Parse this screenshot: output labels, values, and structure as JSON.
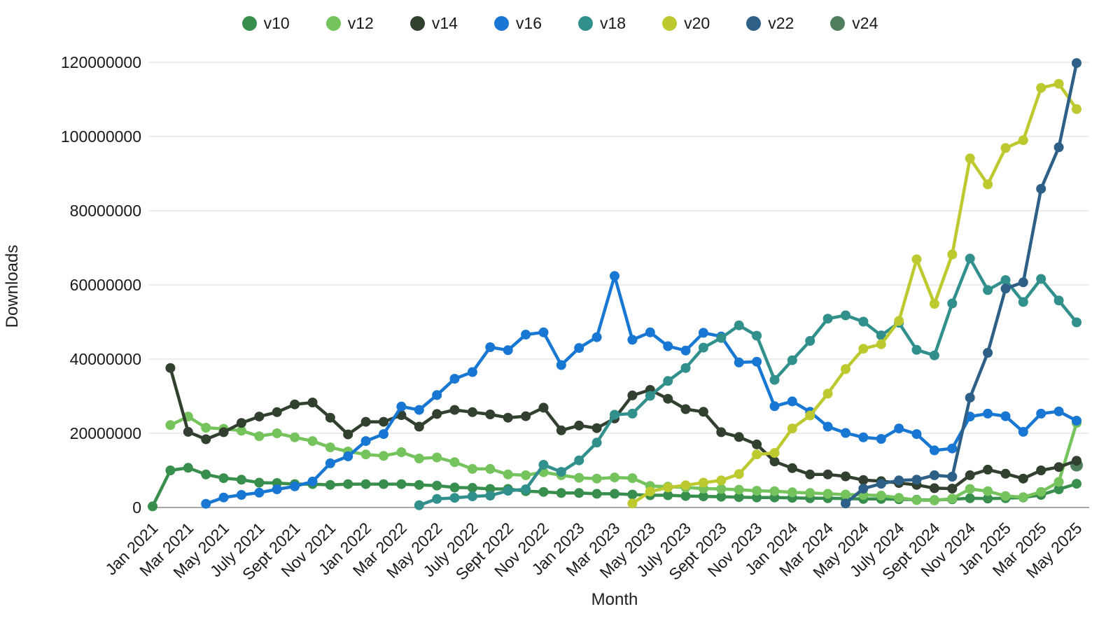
{
  "chart_data": {
    "type": "line",
    "title": "",
    "xlabel": "Month",
    "ylabel": "Downloads",
    "ylim": [
      0,
      120000000
    ],
    "yticks": [
      0,
      20000000,
      40000000,
      60000000,
      80000000,
      100000000,
      120000000
    ],
    "grid": "horizontal",
    "legend_position": "top",
    "x_tick_every": 2,
    "months": [
      "Jan 2021",
      "Feb 2021",
      "Mar 2021",
      "Apr 2021",
      "May 2021",
      "June 2021",
      "July 2021",
      "Aug 2021",
      "Sept 2021",
      "Oct 2021",
      "Nov 2021",
      "Dec 2021",
      "Jan 2022",
      "Feb 2022",
      "Mar 2022",
      "Apr 2022",
      "May 2022",
      "June 2022",
      "July 2022",
      "Aug 2022",
      "Sept 2022",
      "Oct 2022",
      "Nov 2022",
      "Dec 2022",
      "Jan 2023",
      "Feb 2023",
      "Mar 2023",
      "Apr 2023",
      "May 2023",
      "June 2023",
      "July 2023",
      "Aug 2023",
      "Sept 2023",
      "Oct 2023",
      "Nov 2023",
      "Dec 2023",
      "Jan 2024",
      "Feb 2024",
      "Mar 2024",
      "Apr 2024",
      "May 2024",
      "June 2024",
      "July 2024",
      "Aug 2024",
      "Sept 2024",
      "Oct 2024",
      "Nov 2024",
      "Dec 2024",
      "Jan 2025",
      "Feb 2025",
      "Mar 2025",
      "Apr 2025",
      "May 2025"
    ],
    "series": [
      {
        "name": "v10",
        "color": "#388e4c",
        "values": [
          300000,
          10000000,
          10700000,
          8900000,
          7900000,
          7500000,
          6700000,
          6600000,
          6300000,
          6300000,
          6100000,
          6300000,
          6300000,
          6300000,
          6300000,
          6100000,
          5900000,
          5400000,
          5300000,
          5000000,
          5000000,
          4400000,
          4200000,
          3900000,
          3900000,
          3700000,
          3700000,
          3500000,
          3300000,
          3300000,
          3100000,
          3000000,
          2900000,
          2800000,
          2700000,
          2700000,
          2600000,
          2500000,
          2500000,
          2400000,
          2300000,
          2300000,
          2200000,
          2100000,
          2000000,
          2200000,
          2500000,
          2400000,
          2500000,
          2700000,
          3400000,
          4900000,
          6400000
        ]
      },
      {
        "name": "v12",
        "color": "#74c35c",
        "values": [
          null,
          22200000,
          24500000,
          21500000,
          21200000,
          20700000,
          19200000,
          20000000,
          18900000,
          17900000,
          16200000,
          15100000,
          14300000,
          13900000,
          14900000,
          13200000,
          13500000,
          12200000,
          10400000,
          10400000,
          8900000,
          8700000,
          9500000,
          8700000,
          8000000,
          7800000,
          8100000,
          7900000,
          5800000,
          5600000,
          5400000,
          5100000,
          5000000,
          4800000,
          4500000,
          4400000,
          4100000,
          3900000,
          3700000,
          3500000,
          3400000,
          3200000,
          2600000,
          2000000,
          1900000,
          2400000,
          5000000,
          4400000,
          3100000,
          2800000,
          4200000,
          6900000,
          22800000
        ]
      },
      {
        "name": "v24",
        "color": "#4f7f5c",
        "values": [
          null,
          null,
          null,
          null,
          null,
          null,
          null,
          null,
          null,
          null,
          null,
          null,
          null,
          null,
          null,
          null,
          null,
          null,
          null,
          null,
          null,
          null,
          null,
          null,
          null,
          null,
          null,
          null,
          null,
          null,
          null,
          null,
          null,
          null,
          null,
          null,
          null,
          null,
          null,
          null,
          null,
          null,
          null,
          null,
          null,
          null,
          null,
          null,
          null,
          null,
          null,
          null,
          11400000
        ]
      },
      {
        "name": "v14",
        "color": "#32402f",
        "values": [
          null,
          37600000,
          20400000,
          18400000,
          20300000,
          22800000,
          24500000,
          25700000,
          27800000,
          28300000,
          24200000,
          19700000,
          23100000,
          23100000,
          24900000,
          21800000,
          25200000,
          26300000,
          25700000,
          25100000,
          24200000,
          24600000,
          26900000,
          20800000,
          22100000,
          21400000,
          24000000,
          30200000,
          31700000,
          29300000,
          26500000,
          25800000,
          20300000,
          19000000,
          17000000,
          12400000,
          10600000,
          8900000,
          8900000,
          8400000,
          7400000,
          7100000,
          6600000,
          6100000,
          5200000,
          5100000,
          8700000,
          10200000,
          9100000,
          7800000,
          10000000,
          10900000,
          12600000
        ]
      },
      {
        "name": "v16",
        "color": "#1877d2",
        "values": [
          null,
          null,
          null,
          1000000,
          2700000,
          3400000,
          4000000,
          4900000,
          5700000,
          7000000,
          11900000,
          13800000,
          17900000,
          19800000,
          27200000,
          26300000,
          30300000,
          34700000,
          36500000,
          43200000,
          42400000,
          46600000,
          47200000,
          38400000,
          43000000,
          45900000,
          62400000,
          45200000,
          47200000,
          43500000,
          42300000,
          47100000,
          46100000,
          39100000,
          39300000,
          27300000,
          28600000,
          25800000,
          21800000,
          20100000,
          18900000,
          18500000,
          21300000,
          19800000,
          15400000,
          15900000,
          24500000,
          25300000,
          24600000,
          20400000,
          25300000,
          25900000,
          23400000
        ]
      },
      {
        "name": "v18",
        "color": "#31908c",
        "values": [
          null,
          null,
          null,
          null,
          null,
          null,
          null,
          null,
          null,
          null,
          null,
          null,
          null,
          null,
          null,
          600000,
          2300000,
          2600000,
          3000000,
          3200000,
          4500000,
          4900000,
          11500000,
          9600000,
          12700000,
          17500000,
          25000000,
          25300000,
          30100000,
          34100000,
          37600000,
          43100000,
          45700000,
          49100000,
          46300000,
          34400000,
          39700000,
          44900000,
          50900000,
          51800000,
          50100000,
          46400000,
          49800000,
          42500000,
          41000000,
          55000000,
          67100000,
          58600000,
          61300000,
          55400000,
          61600000,
          55800000,
          49900000
        ]
      },
      {
        "name": "v20",
        "color": "#bcca2f",
        "values": [
          null,
          null,
          null,
          null,
          null,
          null,
          null,
          null,
          null,
          null,
          null,
          null,
          null,
          null,
          null,
          null,
          null,
          null,
          null,
          null,
          null,
          null,
          null,
          null,
          null,
          null,
          null,
          1100000,
          4300000,
          5400000,
          6000000,
          6700000,
          7300000,
          9000000,
          14300000,
          14700000,
          21300000,
          24800000,
          30700000,
          37300000,
          42800000,
          44000000,
          50300000,
          66900000,
          54900000,
          68200000,
          94100000,
          87100000,
          96900000,
          99000000,
          113100000,
          114200000,
          107400000
        ]
      },
      {
        "name": "v22",
        "color": "#2d5f87",
        "values": [
          null,
          null,
          null,
          null,
          null,
          null,
          null,
          null,
          null,
          null,
          null,
          null,
          null,
          null,
          null,
          null,
          null,
          null,
          null,
          null,
          null,
          null,
          null,
          null,
          null,
          null,
          null,
          null,
          null,
          null,
          null,
          null,
          null,
          null,
          null,
          null,
          null,
          null,
          null,
          1100000,
          5100000,
          6400000,
          7300000,
          7500000,
          8700000,
          8300000,
          29600000,
          41700000,
          59000000,
          60700000,
          85900000,
          97100000,
          119800000
        ]
      }
    ],
    "legend_order": [
      "v10",
      "v12",
      "v14",
      "v16",
      "v18",
      "v20",
      "v22",
      "v24"
    ],
    "colors": {
      "grid": "#e2e2e2",
      "axis_line": "#8c8c8c",
      "tick_text": "#1a1a1a"
    }
  }
}
